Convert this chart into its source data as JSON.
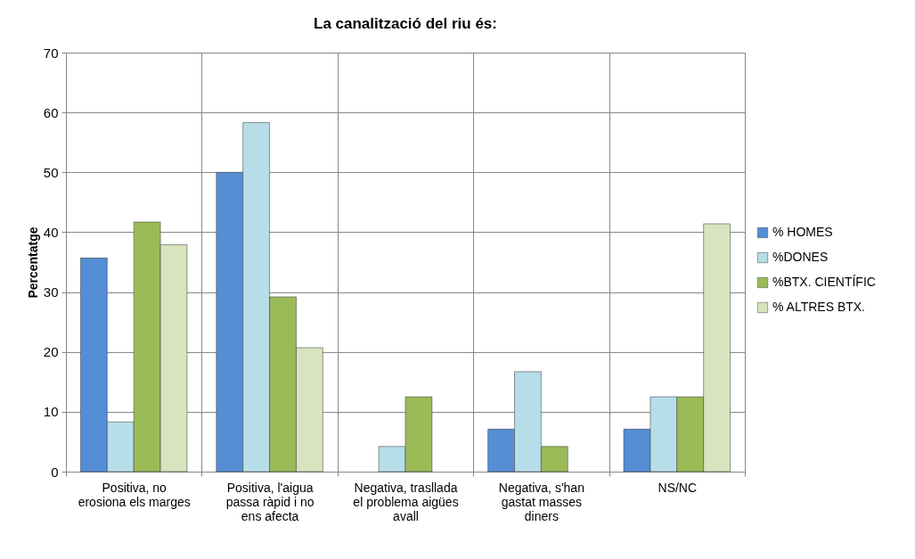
{
  "chart_data": {
    "type": "bar",
    "title": "La canalització del riu és:",
    "ylabel": "Percentatge",
    "categories": [
      "Positiva,  no erosiona els marges",
      "Positiva, l'aigua passa ràpid i no ens afecta",
      "Negativa, trasllada el problema aigües avall",
      "Negativa, s'han gastat masses diners",
      "NS/NC"
    ],
    "series": [
      {
        "name": "% HOMES",
        "color": "#558ed5",
        "values": [
          35.7,
          50,
          null,
          7.1,
          7.1
        ]
      },
      {
        "name": "%DONES",
        "color": "#b7dee8",
        "values": [
          8.3,
          58.3,
          4.2,
          16.7,
          12.5
        ]
      },
      {
        "name": "%BTX. CIENTÍFIC",
        "color": "#9bbb59",
        "values": [
          41.7,
          29.2,
          12.5,
          4.2,
          12.5
        ]
      },
      {
        "name": "% ALTRES BTX.",
        "color": "#d7e4bd",
        "values": [
          37.9,
          20.7,
          null,
          null,
          41.4
        ]
      }
    ],
    "ylim": [
      0,
      70
    ],
    "yticks": [
      0,
      10,
      20,
      30,
      40,
      50,
      60,
      70
    ],
    "grid": true,
    "legend": "right"
  }
}
